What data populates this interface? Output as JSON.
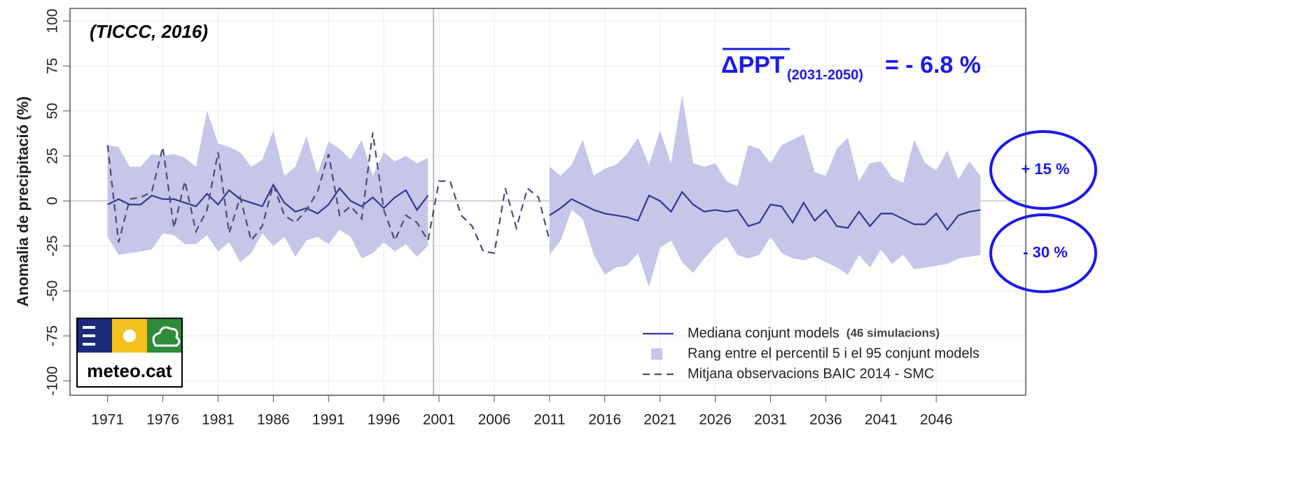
{
  "chart_data": {
    "type": "line",
    "y_label": "Anomalia de precipitació (%)",
    "source": "(TICCC, 2016)",
    "delta_main": "ΔPPT",
    "delta_sub": "(2031-2050)",
    "delta_value": "= - 6.8 %",
    "upper_note": "+ 15 %",
    "lower_note": "- 30 %",
    "logo_text": "meteo.cat",
    "legend_note": "(46 simulacions)",
    "x": [
      1971,
      1972,
      1973,
      1974,
      1975,
      1976,
      1977,
      1978,
      1979,
      1980,
      1981,
      1982,
      1983,
      1984,
      1985,
      1986,
      1987,
      1988,
      1989,
      1990,
      1991,
      1992,
      1993,
      1994,
      1995,
      1996,
      1997,
      1998,
      1999,
      2000,
      2001,
      2002,
      2003,
      2004,
      2005,
      2006,
      2007,
      2008,
      2009,
      2010,
      2011,
      2012,
      2013,
      2014,
      2015,
      2016,
      2017,
      2018,
      2019,
      2020,
      2021,
      2022,
      2023,
      2024,
      2025,
      2026,
      2027,
      2028,
      2029,
      2030,
      2031,
      2032,
      2033,
      2034,
      2035,
      2036,
      2037,
      2038,
      2039,
      2040,
      2041,
      2042,
      2043,
      2044,
      2045,
      2046,
      2047,
      2048,
      2049,
      2050
    ],
    "series": [
      {
        "name": "Mediana conjunt models",
        "color": "#35359a",
        "style": "solid",
        "values": [
          -2,
          1,
          -2,
          -2,
          3,
          1,
          1,
          -1,
          -3,
          4,
          -2,
          6,
          1,
          -1,
          -3,
          9,
          -1,
          -6,
          -4,
          -7,
          -2,
          7,
          0,
          -3,
          2,
          -4,
          2,
          6,
          -5,
          3,
          null,
          null,
          null,
          null,
          null,
          null,
          null,
          null,
          null,
          null,
          -8,
          -4,
          1,
          -2,
          -5,
          -7,
          -8,
          -9,
          -11,
          3,
          0,
          -6,
          5,
          -2,
          -6,
          -5,
          -6,
          -5,
          -14,
          -12,
          -2,
          -3,
          -12,
          -1,
          -11,
          -5,
          -14,
          -15,
          -6,
          -14,
          -7,
          -7,
          -10,
          -13,
          -13,
          -7,
          -16,
          -8,
          -6,
          -5
        ]
      },
      {
        "name": "Rang entre el percentil 5 i el 95 conjunt models",
        "color": "#c6c6e8",
        "style": "band",
        "upper": [
          31,
          30,
          19,
          19,
          26,
          25,
          26,
          24,
          19,
          50,
          32,
          30,
          27,
          19,
          23,
          39,
          14,
          19,
          36,
          15,
          33,
          29,
          23,
          34,
          14,
          27,
          22,
          25,
          21,
          24,
          null,
          null,
          null,
          null,
          null,
          null,
          null,
          null,
          null,
          null,
          19,
          14,
          20,
          34,
          14,
          18,
          20,
          26,
          35,
          20,
          39,
          21,
          59,
          21,
          19,
          21,
          11,
          8,
          31,
          29,
          21,
          31,
          34,
          37,
          16,
          14,
          29,
          35,
          11,
          21,
          22,
          13,
          10,
          34,
          21,
          17,
          28,
          12,
          22,
          14
        ],
        "lower": [
          -20,
          -30,
          -29,
          -28,
          -27,
          -18,
          -19,
          -24,
          -24,
          -19,
          -28,
          -23,
          -34,
          -29,
          -18,
          -25,
          -20,
          -31,
          -22,
          -20,
          -24,
          -16,
          -20,
          -32,
          -29,
          -23,
          -28,
          -24,
          -31,
          -25,
          null,
          null,
          null,
          null,
          null,
          null,
          null,
          null,
          null,
          null,
          -30,
          -22,
          -5,
          -10,
          -30,
          -41,
          -37,
          -36,
          -29,
          -48,
          -26,
          -22,
          -34,
          -40,
          -32,
          -25,
          -20,
          -30,
          -32,
          -30,
          -20,
          -29,
          -32,
          -33,
          -31,
          -34,
          -37,
          -41,
          -30,
          -37,
          -27,
          -35,
          -30,
          -38,
          -37,
          -36,
          -35,
          -32,
          -31,
          -30
        ]
      },
      {
        "name": "Mitjana observacions BAIC 2014 - SMC",
        "color": "#4a4a78",
        "style": "dashed",
        "values": [
          31,
          -23,
          1,
          2,
          5,
          30,
          -15,
          11,
          -17,
          -5,
          27,
          -18,
          2,
          -22,
          -14,
          9,
          -8,
          -12,
          -5,
          5,
          26,
          -8,
          -3,
          -10,
          38,
          -5,
          -22,
          -8,
          -12,
          -22,
          11,
          11,
          -8,
          -14,
          -28,
          -29,
          7,
          -15,
          7,
          2,
          -22,
          null,
          null,
          null,
          null,
          null,
          null,
          null,
          null,
          null,
          null,
          null,
          null,
          null,
          null,
          null,
          null,
          null,
          null,
          null,
          null,
          null,
          null,
          null,
          null,
          null,
          null,
          null,
          null,
          null,
          null,
          null,
          null,
          null,
          null,
          null,
          null,
          null,
          null,
          null
        ]
      }
    ],
    "xlim": [
      1967.6,
      2054.1
    ],
    "ylim": [
      -108,
      107
    ],
    "xticks": [
      1971,
      1976,
      1981,
      1986,
      1991,
      1996,
      2001,
      2006,
      2011,
      2016,
      2021,
      2026,
      2031,
      2036,
      2041,
      2046
    ],
    "yticks": [
      -100,
      -75,
      -50,
      -25,
      0,
      25,
      50,
      75,
      100
    ],
    "vline_x": 2000.5,
    "grid": true
  }
}
